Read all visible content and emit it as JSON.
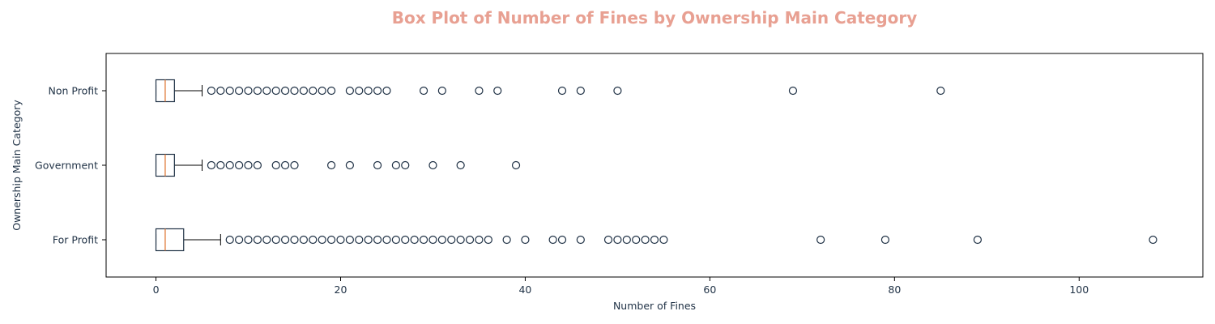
{
  "chart_data": {
    "type": "boxplot",
    "orientation": "horizontal",
    "title": "Box Plot of Number of Fines by Ownership Main Category",
    "xlabel": "Number of Fines",
    "ylabel": "Ownership Main Category",
    "xlim": [
      -5.4,
      113.4
    ],
    "xticks": [
      0,
      20,
      40,
      60,
      80,
      100
    ],
    "grid": false,
    "colors": {
      "title": "#e8a092",
      "box": "#1f3145",
      "median": "#e07b39",
      "text": "#1f3145"
    },
    "categories": [
      "For Profit",
      "Government",
      "Non Profit"
    ],
    "series": [
      {
        "category": "For Profit",
        "whisker_low": 0,
        "q1": 0,
        "median": 1,
        "q3": 3,
        "whisker_high": 7,
        "outliers": [
          8,
          9,
          10,
          11,
          12,
          13,
          14,
          15,
          16,
          17,
          18,
          19,
          20,
          21,
          22,
          23,
          24,
          25,
          26,
          27,
          28,
          29,
          30,
          31,
          32,
          33,
          34,
          35,
          36,
          38,
          40,
          43,
          44,
          46,
          49,
          50,
          51,
          52,
          53,
          54,
          55,
          72,
          79,
          89,
          108
        ]
      },
      {
        "category": "Government",
        "whisker_low": 0,
        "q1": 0,
        "median": 1,
        "q3": 2,
        "whisker_high": 5,
        "outliers": [
          6,
          7,
          8,
          9,
          10,
          11,
          13,
          14,
          15,
          19,
          21,
          24,
          26,
          27,
          30,
          33,
          39
        ]
      },
      {
        "category": "Non Profit",
        "whisker_low": 0,
        "q1": 0,
        "median": 1,
        "q3": 2,
        "whisker_high": 5,
        "outliers": [
          6,
          7,
          8,
          9,
          10,
          11,
          12,
          13,
          14,
          15,
          16,
          17,
          18,
          19,
          21,
          22,
          23,
          24,
          25,
          29,
          31,
          35,
          37,
          44,
          46,
          50,
          69,
          85
        ]
      }
    ]
  }
}
